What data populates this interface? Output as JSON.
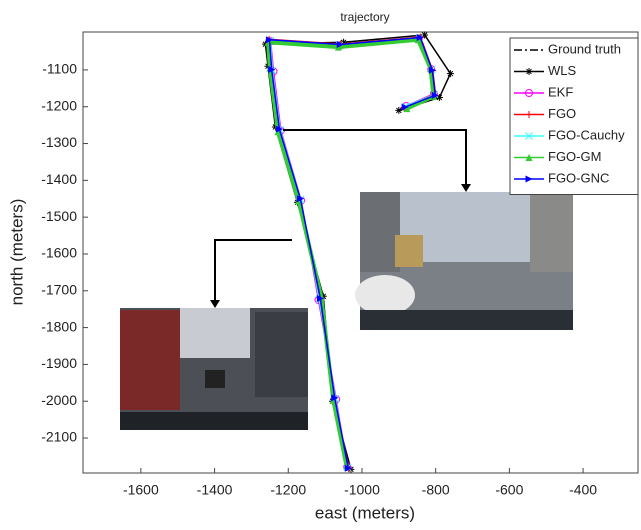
{
  "chart_data": {
    "type": "line",
    "title": "trajectory",
    "x_label": "east (meters)",
    "y_label": "north (meters)",
    "xlim": [
      -1757,
      -251
    ],
    "ylim": [
      -2195,
      -997
    ],
    "xticks": [
      -1600,
      -1400,
      -1200,
      -1000,
      -800,
      -600,
      -400
    ],
    "yticks": [
      -2100,
      -2000,
      -1900,
      -1800,
      -1700,
      -1600,
      -1500,
      -1400,
      -1300,
      -1200,
      -1100
    ],
    "legend": "upper right",
    "series": [
      {
        "name": "Ground truth",
        "color": "#000000",
        "marker": "none",
        "dash": "dashdot",
        "x": [
          -1038,
          -1073,
          -1114,
          -1168,
          -1223,
          -1244,
          -1250,
          -1060,
          -843,
          -810,
          -802,
          -884
        ],
        "y": [
          -2181,
          -1992,
          -1722,
          -1451,
          -1262,
          -1100,
          -1019,
          -1032,
          -1013,
          -1100,
          -1168,
          -1200
        ]
      },
      {
        "name": "WLS",
        "color": "#000000",
        "marker": "star",
        "x": [
          -1030,
          -1080,
          -1105,
          -1175,
          -1235,
          -1255,
          -1262,
          -1050,
          -830,
          -760,
          -790,
          -900
        ],
        "y": [
          -2185,
          -2000,
          -1715,
          -1460,
          -1255,
          -1090,
          -1030,
          -1025,
          -1005,
          -1110,
          -1175,
          -1210
        ]
      },
      {
        "name": "EKF",
        "color": "#ff00ff",
        "marker": "circle",
        "x": [
          -1040,
          -1070,
          -1118,
          -1165,
          -1220,
          -1240,
          -1248,
          -1062,
          -846,
          -812,
          -805,
          -880
        ],
        "y": [
          -2178,
          -1995,
          -1725,
          -1455,
          -1265,
          -1104,
          -1022,
          -1035,
          -1016,
          -1098,
          -1165,
          -1198
        ]
      },
      {
        "name": "FGO",
        "color": "#ff0000",
        "marker": "plus",
        "x": [
          -1036,
          -1075,
          -1112,
          -1170,
          -1225,
          -1246,
          -1252,
          -1058,
          -841,
          -808,
          -800,
          -886
        ],
        "y": [
          -2183,
          -1990,
          -1720,
          -1449,
          -1260,
          -1098,
          -1017,
          -1030,
          -1011,
          -1102,
          -1170,
          -1202
        ]
      },
      {
        "name": "FGO-Cauchy",
        "color": "#33ffff",
        "marker": "cross",
        "x": [
          -1039,
          -1072,
          -1116,
          -1166,
          -1222,
          -1243,
          -1249,
          -1061,
          -844,
          -811,
          -803,
          -882
        ],
        "y": [
          -2180,
          -1993,
          -1723,
          -1452,
          -1263,
          -1101,
          -1020,
          -1033,
          -1014,
          -1099,
          -1167,
          -1199
        ]
      },
      {
        "name": "FGO-GM",
        "color": "#33cc33",
        "marker": "triangle-up",
        "x": [
          -1042,
          -1078,
          -1110,
          -1172,
          -1228,
          -1250,
          -1255,
          -1064,
          -848,
          -814,
          -806,
          -878
        ],
        "y": [
          -2176,
          -1997,
          -1718,
          -1456,
          -1268,
          -1095,
          -1025,
          -1038,
          -1018,
          -1096,
          -1172,
          -1205
        ]
      },
      {
        "name": "FGO-GNC",
        "color": "#0000ff",
        "marker": "triangle-right",
        "x": [
          -1037,
          -1074,
          -1113,
          -1167,
          -1224,
          -1245,
          -1251,
          -1059,
          -842,
          -809,
          -801,
          -883
        ],
        "y": [
          -2182,
          -1991,
          -1721,
          -1450,
          -1261,
          -1099,
          -1018,
          -1031,
          -1012,
          -1101,
          -1169,
          -1201
        ]
      }
    ]
  }
}
